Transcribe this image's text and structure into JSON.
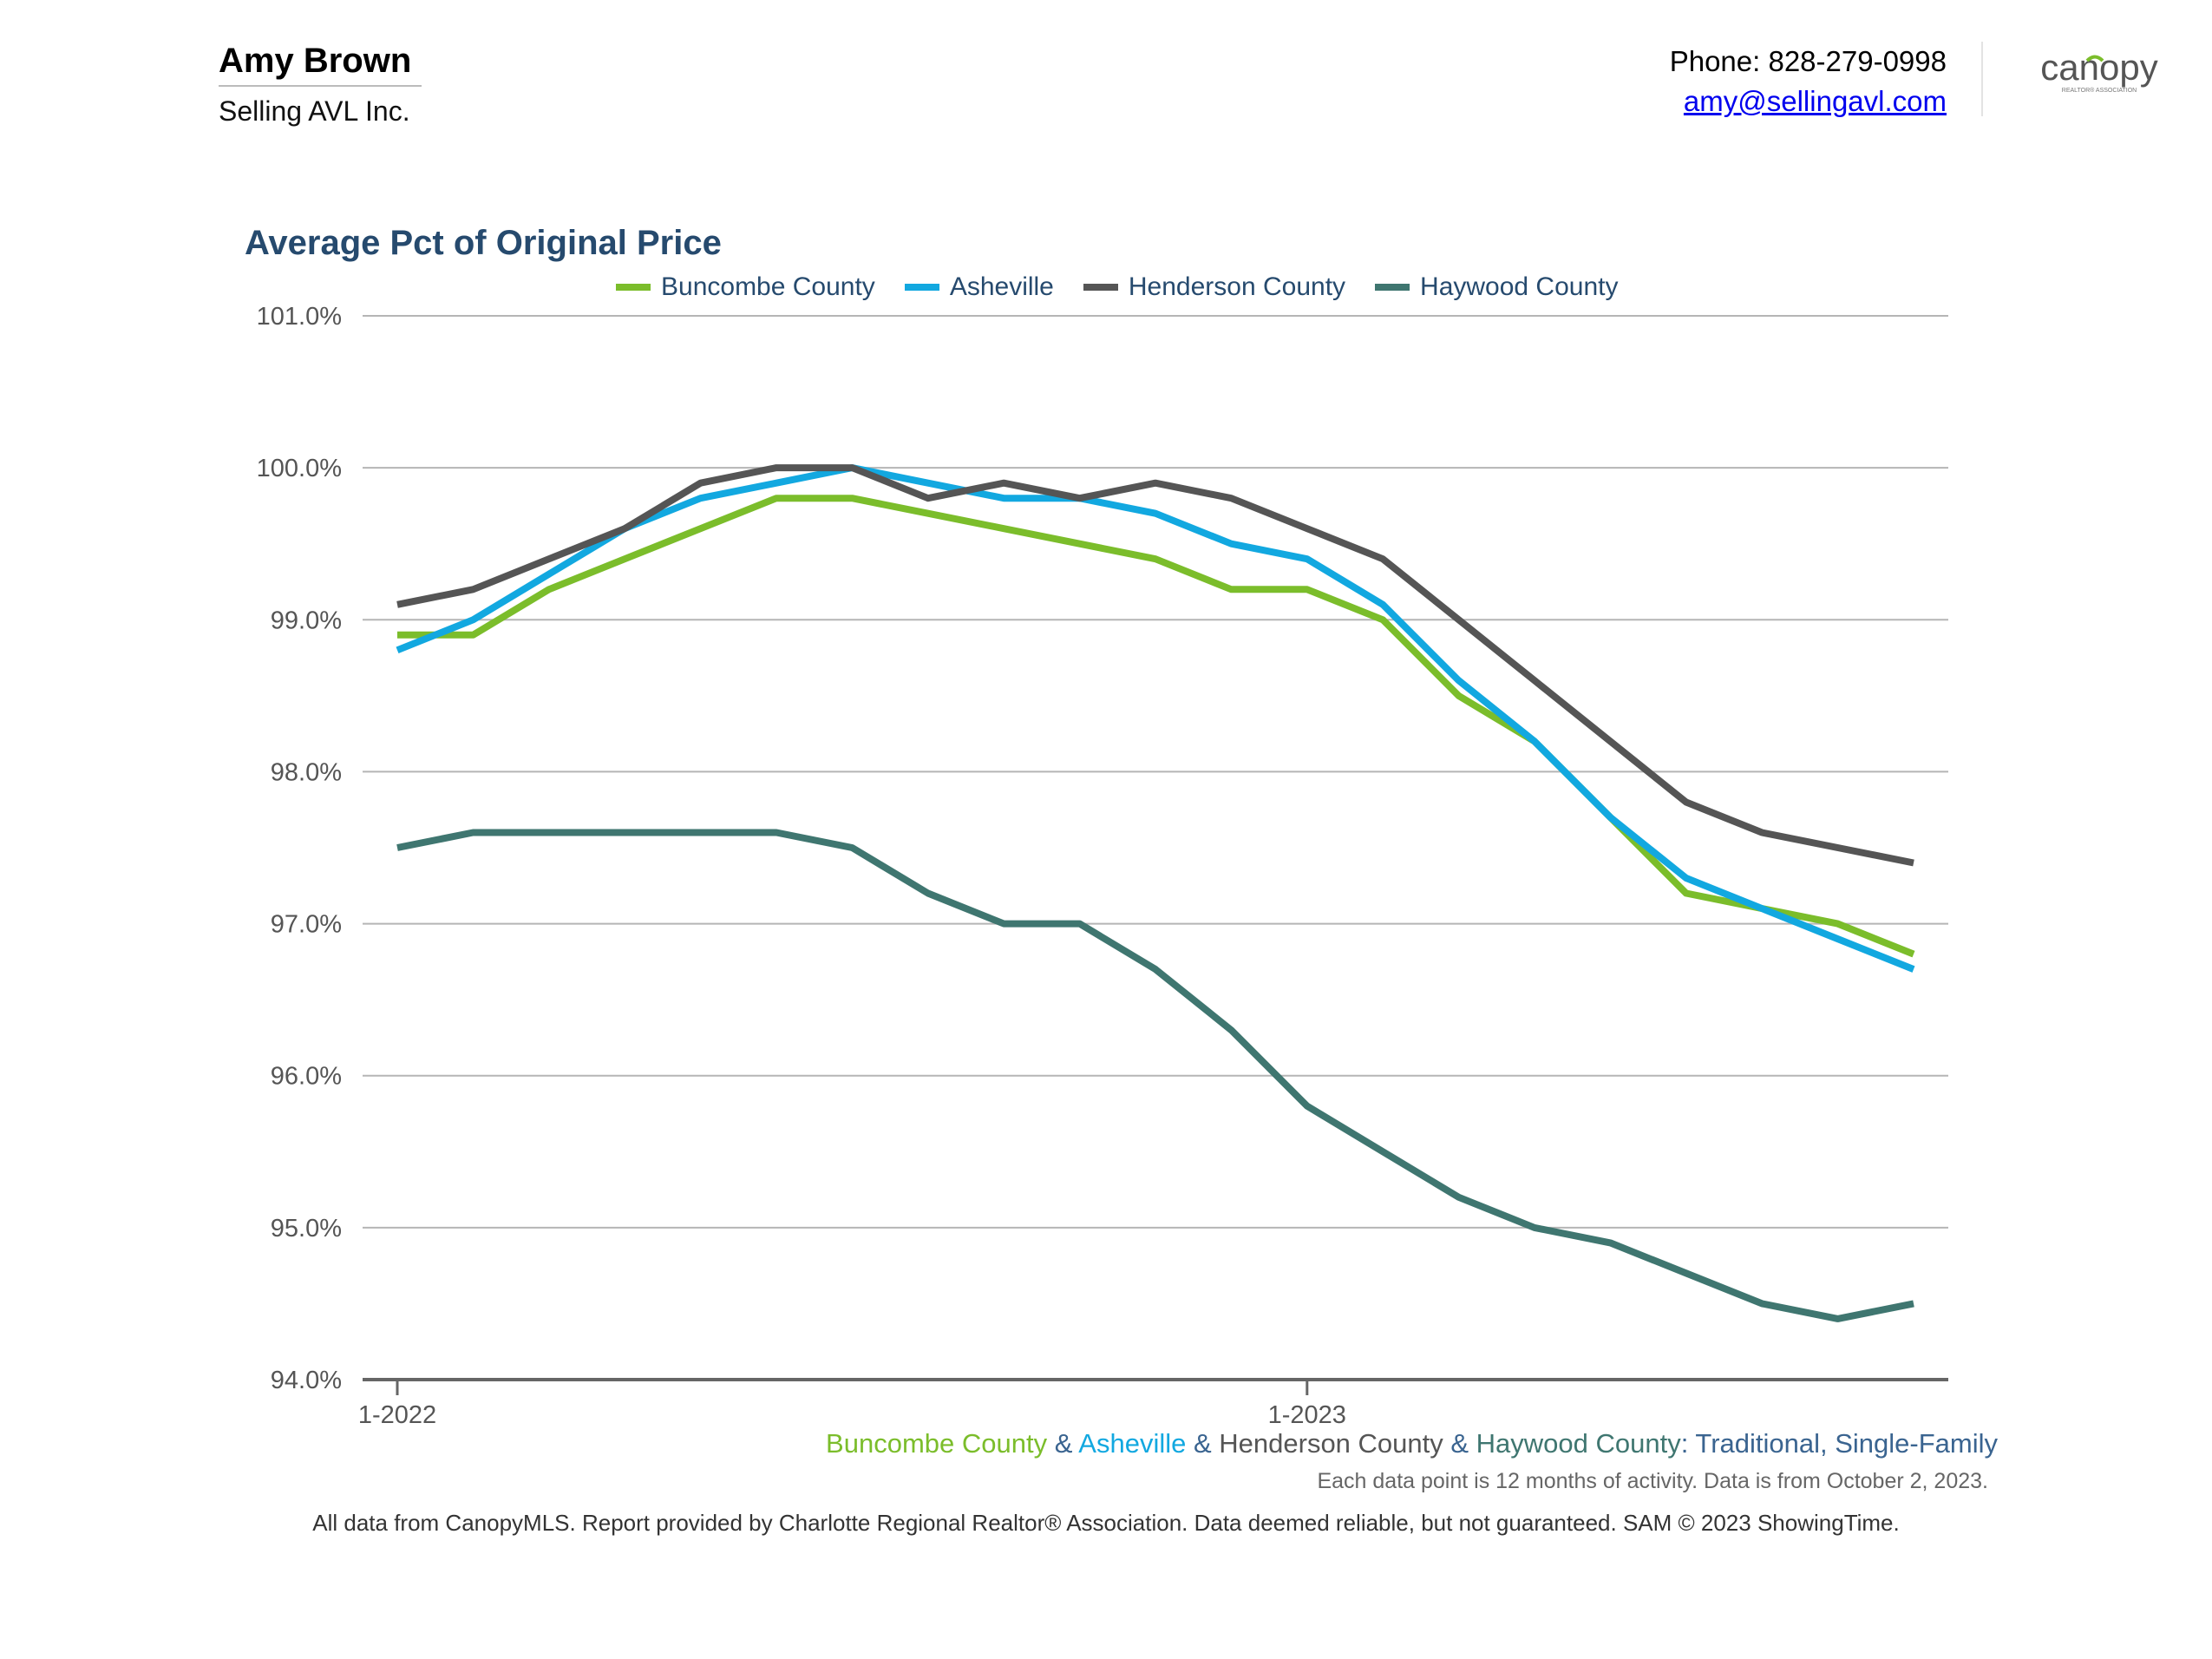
{
  "agent": {
    "name": "Amy Brown",
    "company": "Selling AVL Inc."
  },
  "contact": {
    "phone": "Phone: 828-279-0998",
    "email": "amy@sellingavl.com"
  },
  "logo": {
    "text": "canopy",
    "tagline": "REALTOR® ASSOCIATION"
  },
  "subtitle": {
    "parts": [
      {
        "text": "Buncombe County",
        "color": "#7bbd2b"
      },
      {
        "text": " & ",
        "color": "#3a6490"
      },
      {
        "text": "Asheville",
        "color": "#12a8e0"
      },
      {
        "text": " & ",
        "color": "#3a6490"
      },
      {
        "text": "Henderson County",
        "color": "#555555"
      },
      {
        "text": " & ",
        "color": "#3a6490"
      },
      {
        "text": "Haywood County",
        "color": "#3f7670"
      },
      {
        "text": ": Traditional, Single-Family",
        "color": "#3a6490"
      }
    ]
  },
  "note": "Each data point is 12 months of activity. Data is from October 2, 2023.",
  "footer": "All data from CanopyMLS. Report provided by Charlotte Regional Realtor® Association. Data deemed reliable, but not guaranteed. SAM © 2023 ShowingTime.",
  "chart_data": {
    "type": "line",
    "title": "Average Pct of Original Price",
    "x": [
      "1-2022",
      "2-2022",
      "3-2022",
      "4-2022",
      "5-2022",
      "6-2022",
      "7-2022",
      "8-2022",
      "9-2022",
      "10-2022",
      "11-2022",
      "12-2022",
      "1-2023",
      "2-2023",
      "3-2023",
      "4-2023",
      "5-2023",
      "6-2023",
      "7-2023",
      "8-2023",
      "9-2023"
    ],
    "x_tick_labels": [
      {
        "index": 0,
        "label": "1-2022"
      },
      {
        "index": 12,
        "label": "1-2023"
      }
    ],
    "ylim": [
      94.0,
      101.0
    ],
    "y_ticks": [
      "94.0%",
      "95.0%",
      "96.0%",
      "97.0%",
      "98.0%",
      "99.0%",
      "100.0%",
      "101.0%"
    ],
    "y_tick_values": [
      94.0,
      95.0,
      96.0,
      97.0,
      98.0,
      99.0,
      100.0,
      101.0
    ],
    "grid": true,
    "legend_placement": "top",
    "series": [
      {
        "name": "Buncombe County",
        "color": "#7bbd2b",
        "values": [
          98.9,
          98.9,
          99.2,
          99.4,
          99.6,
          99.8,
          99.8,
          99.7,
          99.6,
          99.5,
          99.4,
          99.2,
          99.2,
          99.0,
          98.5,
          98.2,
          97.7,
          97.2,
          97.1,
          97.0,
          96.8
        ]
      },
      {
        "name": "Asheville",
        "color": "#12a8e0",
        "values": [
          98.8,
          99.0,
          99.3,
          99.6,
          99.8,
          99.9,
          100.0,
          99.9,
          99.8,
          99.8,
          99.7,
          99.5,
          99.4,
          99.1,
          98.6,
          98.2,
          97.7,
          97.3,
          97.1,
          96.9,
          96.7
        ]
      },
      {
        "name": "Henderson County",
        "color": "#555555",
        "values": [
          99.1,
          99.2,
          99.4,
          99.6,
          99.9,
          100.0,
          100.0,
          99.8,
          99.9,
          99.8,
          99.9,
          99.8,
          99.6,
          99.4,
          99.0,
          98.6,
          98.2,
          97.8,
          97.6,
          97.5,
          97.4
        ]
      },
      {
        "name": "Haywood County",
        "color": "#3f7670",
        "values": [
          97.5,
          97.6,
          97.6,
          97.6,
          97.6,
          97.6,
          97.5,
          97.2,
          97.0,
          97.0,
          96.7,
          96.3,
          95.8,
          95.5,
          95.2,
          95.0,
          94.9,
          94.7,
          94.5,
          94.4,
          94.5
        ]
      }
    ]
  }
}
